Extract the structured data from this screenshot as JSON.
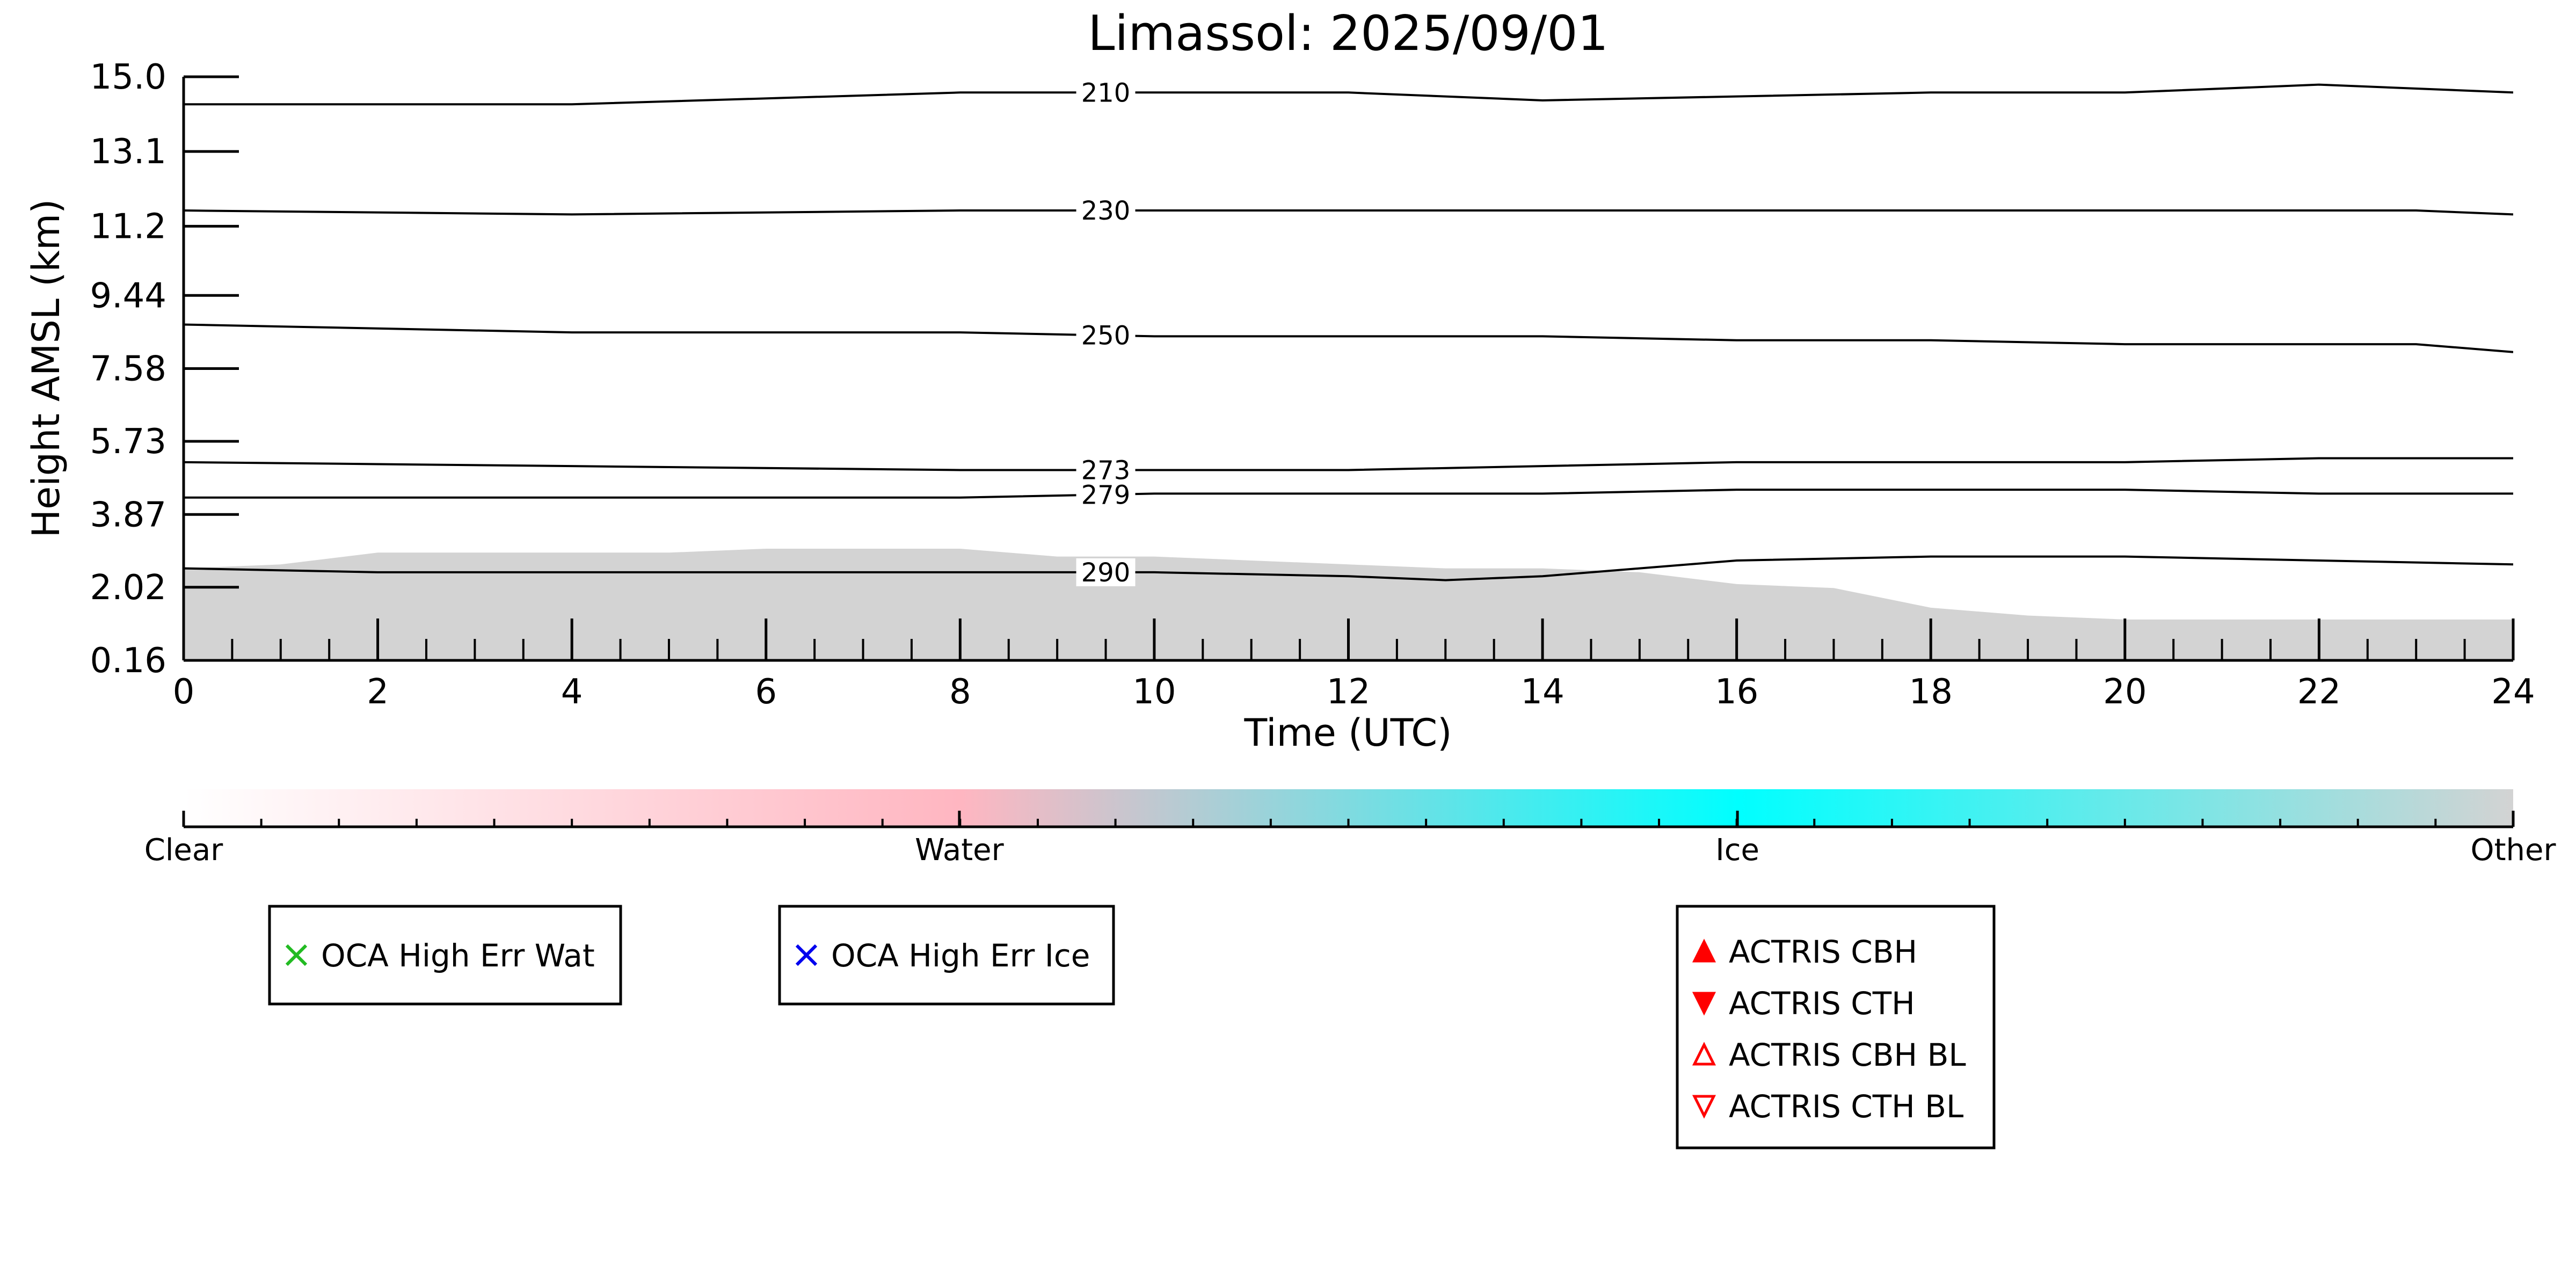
{
  "chart_data": {
    "type": "heatmap",
    "title": "Limassol: 2025/09/01",
    "xlabel": "Time (UTC)",
    "ylabel": "Height AMSL (km)",
    "xlim": [
      0,
      24
    ],
    "ylim": [
      0.16,
      15.0
    ],
    "x_ticks": [
      "0",
      "2",
      "4",
      "6",
      "8",
      "10",
      "12",
      "14",
      "16",
      "18",
      "20",
      "22",
      "24"
    ],
    "y_ticks": [
      "15.0",
      "13.1",
      "11.2",
      "9.44",
      "7.58",
      "5.73",
      "3.87",
      "2.02",
      "0.16"
    ],
    "y_tick_values": [
      15.0,
      13.1,
      11.2,
      9.44,
      7.58,
      5.73,
      3.87,
      2.02,
      0.16
    ],
    "cloud_top_km": [
      [
        0,
        2.5
      ],
      [
        1,
        2.6
      ],
      [
        2,
        2.9
      ],
      [
        3,
        2.9
      ],
      [
        4,
        2.9
      ],
      [
        5,
        2.9
      ],
      [
        6,
        3.0
      ],
      [
        7,
        3.0
      ],
      [
        8,
        3.0
      ],
      [
        9,
        2.8
      ],
      [
        10,
        2.8
      ],
      [
        11,
        2.7
      ],
      [
        12,
        2.6
      ],
      [
        13,
        2.5
      ],
      [
        14,
        2.5
      ],
      [
        15,
        2.4
      ],
      [
        16,
        2.1
      ],
      [
        17,
        2.0
      ],
      [
        18,
        1.5
      ],
      [
        19,
        1.3
      ],
      [
        20,
        1.2
      ],
      [
        21,
        1.2
      ],
      [
        22,
        1.2
      ],
      [
        23,
        1.2
      ],
      [
        24,
        1.2
      ]
    ],
    "cloud_color": "#d3d3d3",
    "contours": [
      {
        "label": "210",
        "label_x": 9.5,
        "points": [
          [
            0,
            14.3
          ],
          [
            4,
            14.3
          ],
          [
            8,
            14.6
          ],
          [
            10,
            14.6
          ],
          [
            12,
            14.6
          ],
          [
            14,
            14.4
          ],
          [
            16,
            14.5
          ],
          [
            18,
            14.6
          ],
          [
            20,
            14.6
          ],
          [
            22,
            14.8
          ],
          [
            24,
            14.6
          ]
        ]
      },
      {
        "label": "230",
        "label_x": 9.5,
        "points": [
          [
            0,
            11.6
          ],
          [
            4,
            11.5
          ],
          [
            8,
            11.6
          ],
          [
            10,
            11.6
          ],
          [
            12,
            11.6
          ],
          [
            14,
            11.6
          ],
          [
            16,
            11.6
          ],
          [
            18,
            11.6
          ],
          [
            20,
            11.6
          ],
          [
            22,
            11.6
          ],
          [
            23,
            11.6
          ],
          [
            24,
            11.5
          ]
        ]
      },
      {
        "label": "250",
        "label_x": 9.5,
        "points": [
          [
            0,
            8.7
          ],
          [
            4,
            8.5
          ],
          [
            8,
            8.5
          ],
          [
            10,
            8.4
          ],
          [
            12,
            8.4
          ],
          [
            14,
            8.4
          ],
          [
            16,
            8.3
          ],
          [
            18,
            8.3
          ],
          [
            20,
            8.2
          ],
          [
            22,
            8.2
          ],
          [
            23,
            8.2
          ],
          [
            24,
            8.0
          ]
        ]
      },
      {
        "label": "273",
        "label_x": 9.5,
        "points": [
          [
            0,
            5.2
          ],
          [
            4,
            5.1
          ],
          [
            8,
            5.0
          ],
          [
            10,
            5.0
          ],
          [
            12,
            5.0
          ],
          [
            14,
            5.1
          ],
          [
            16,
            5.2
          ],
          [
            18,
            5.2
          ],
          [
            20,
            5.2
          ],
          [
            22,
            5.3
          ],
          [
            24,
            5.3
          ]
        ]
      },
      {
        "label": "279",
        "label_x": 9.5,
        "points": [
          [
            0,
            4.3
          ],
          [
            4,
            4.3
          ],
          [
            8,
            4.3
          ],
          [
            10,
            4.4
          ],
          [
            12,
            4.4
          ],
          [
            14,
            4.4
          ],
          [
            16,
            4.5
          ],
          [
            18,
            4.5
          ],
          [
            20,
            4.5
          ],
          [
            22,
            4.4
          ],
          [
            24,
            4.4
          ]
        ]
      },
      {
        "label": "290",
        "label_x": 9.5,
        "points": [
          [
            0,
            2.5
          ],
          [
            2,
            2.4
          ],
          [
            4,
            2.4
          ],
          [
            6,
            2.4
          ],
          [
            8,
            2.4
          ],
          [
            10,
            2.4
          ],
          [
            12,
            2.3
          ],
          [
            13,
            2.2
          ],
          [
            14,
            2.3
          ],
          [
            15,
            2.5
          ],
          [
            16,
            2.7
          ],
          [
            18,
            2.8
          ],
          [
            20,
            2.8
          ],
          [
            22,
            2.7
          ],
          [
            24,
            2.6
          ]
        ]
      }
    ],
    "colorbar": {
      "labels": [
        "Clear",
        "Water",
        "Ice",
        "Other"
      ],
      "positions": [
        0,
        0.333,
        0.667,
        1.0
      ],
      "colors": [
        "#ffffff",
        "#ffb6c1",
        "#00ffff",
        "#d3d3d3"
      ]
    },
    "legends": [
      {
        "entries": [
          {
            "label": "OCA High Err Wat",
            "marker": "x",
            "color": "#22bb22"
          }
        ]
      },
      {
        "entries": [
          {
            "label": "OCA High Err Ice",
            "marker": "x",
            "color": "#0000ee"
          }
        ]
      },
      {
        "entries": [
          {
            "label": "ACTRIS CBH",
            "marker": "triangle-up-filled",
            "color": "#ff0000"
          },
          {
            "label": "ACTRIS CTH",
            "marker": "triangle-down-filled",
            "color": "#ff0000"
          },
          {
            "label": "ACTRIS CBH BL",
            "marker": "triangle-up-open",
            "color": "#ff0000"
          },
          {
            "label": "ACTRIS CTH BL",
            "marker": "triangle-down-open",
            "color": "#ff0000"
          }
        ]
      }
    ],
    "grid": false
  }
}
